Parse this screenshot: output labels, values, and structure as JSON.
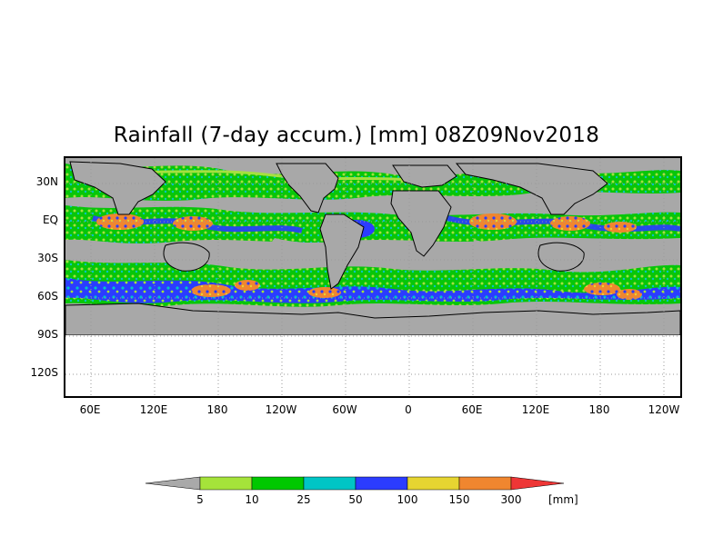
{
  "title": "Rainfall (7-day accum.) [mm] 08Z09Nov2018",
  "lat_labels": [
    "30N",
    "EQ",
    "30S",
    "60S",
    "90S",
    "120S"
  ],
  "lon_labels": [
    "60E",
    "120E",
    "180",
    "120W",
    "60W",
    "0",
    "60E",
    "120E",
    "180",
    "120W"
  ],
  "colorbar": {
    "labels": [
      "5",
      "10",
      "25",
      "50",
      "100",
      "150",
      "300"
    ],
    "unit": "[mm]",
    "colors": [
      "#a9a9a9",
      "#a5e33a",
      "#00c800",
      "#00c5c5",
      "#2b3cff",
      "#e6d531",
      "#f0862f",
      "#ee3636"
    ]
  },
  "colors": {
    "land_mask": "#a8a8a8",
    "coast": "#000000",
    "grid": "#9a9a9a"
  }
}
